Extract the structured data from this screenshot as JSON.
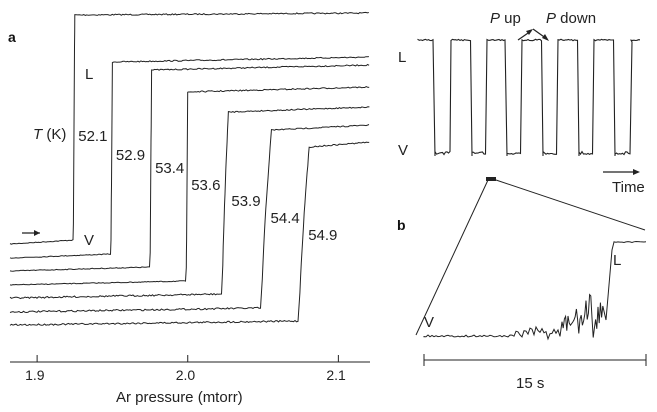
{
  "panel_labels": {
    "a": "a",
    "b": "b"
  },
  "chart_data": [
    {
      "type": "line",
      "panel": "a",
      "xlabel": "Ar pressure (mtorr)",
      "xlim": [
        1.882,
        2.121
      ],
      "xticks": [
        1.9,
        2.0,
        2.1
      ],
      "xtick_labels": [
        "1.9",
        "2.0",
        "2.1"
      ],
      "temperature_label_prefix": "T (K)",
      "series": [
        {
          "name": "52.1",
          "transition_pressure": 1.924
        },
        {
          "name": "52.9",
          "transition_pressure": 1.949
        },
        {
          "name": "53.4",
          "transition_pressure": 1.975
        },
        {
          "name": "53.6",
          "transition_pressure": 1.999
        },
        {
          "name": "53.9",
          "transition_pressure": 2.023
        },
        {
          "name": "54.4",
          "transition_pressure": 2.049
        },
        {
          "name": "54.9",
          "transition_pressure": 2.074
        }
      ],
      "annotations": {
        "liquid": "L",
        "vapor": "V",
        "arrow": "→"
      }
    },
    {
      "type": "line",
      "panel": "a-inset",
      "xlabel": "Time",
      "states": {
        "top": "L",
        "bottom": "V"
      },
      "annotations": {
        "p_up": "P up",
        "p_down": "P down",
        "p_symbol": "P",
        "up": "up",
        "down": "down"
      },
      "liquid_intervals_count": 6
    },
    {
      "type": "line",
      "panel": "b",
      "states": {
        "start": "V",
        "end": "L"
      },
      "scale_bar_label": "15 s"
    }
  ]
}
